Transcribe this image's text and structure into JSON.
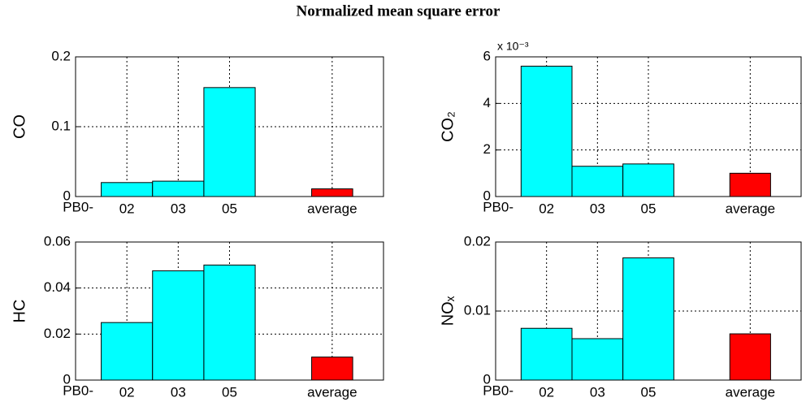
{
  "title": "Normalized mean square error",
  "chart_data": [
    {
      "type": "bar",
      "ylabel": "CO",
      "x_prefix": "PB0-",
      "categories": [
        "02",
        "03",
        "05",
        "average"
      ],
      "values": [
        0.02,
        0.022,
        0.156,
        0.011
      ],
      "colors": [
        "#00ffff",
        "#00ffff",
        "#00ffff",
        "#ff0000"
      ],
      "ylim": [
        0,
        0.2
      ],
      "yticks": [
        0,
        0.1,
        0.2
      ],
      "grid": true
    },
    {
      "type": "bar",
      "ylabel": "CO₂",
      "x_prefix": "PB0-",
      "y_multiplier": "x 10⁻³",
      "categories": [
        "02",
        "03",
        "05",
        "average"
      ],
      "values": [
        5.6,
        1.3,
        1.4,
        1.0
      ],
      "colors": [
        "#00ffff",
        "#00ffff",
        "#00ffff",
        "#ff0000"
      ],
      "ylim": [
        0,
        6
      ],
      "yticks": [
        0,
        2,
        4,
        6
      ],
      "grid": true
    },
    {
      "type": "bar",
      "ylabel": "HC",
      "x_prefix": "PB0-",
      "categories": [
        "02",
        "03",
        "05",
        "average"
      ],
      "values": [
        0.025,
        0.0475,
        0.05,
        0.01
      ],
      "colors": [
        "#00ffff",
        "#00ffff",
        "#00ffff",
        "#ff0000"
      ],
      "ylim": [
        0,
        0.06
      ],
      "yticks": [
        0,
        0.02,
        0.04,
        0.06
      ],
      "grid": true
    },
    {
      "type": "bar",
      "ylabel": "NOₓ",
      "x_prefix": "PB0-",
      "categories": [
        "02",
        "03",
        "05",
        "average"
      ],
      "values": [
        0.0075,
        0.006,
        0.0177,
        0.0067
      ],
      "colors": [
        "#00ffff",
        "#00ffff",
        "#00ffff",
        "#ff0000"
      ],
      "ylim": [
        0,
        0.02
      ],
      "yticks": [
        0,
        0.01,
        0.02
      ],
      "grid": true
    }
  ]
}
